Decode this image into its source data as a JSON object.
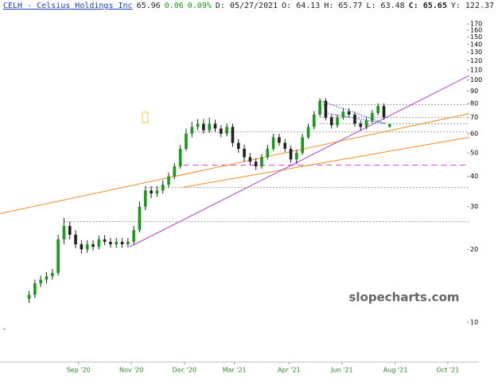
{
  "chart_data": {
    "type": "candlestick",
    "header": {
      "symbol": "CELH - Celsius Holdings Inc",
      "last": "65.96",
      "change": "0.06",
      "change_pct": "0.09%",
      "date": "D: 05/27/2021",
      "open": "O: 64.13",
      "high": "H: 65.77",
      "low": "L: 63.48",
      "close": "C: 65.65",
      "year": "Y: 122.37"
    },
    "watermark": "slopecharts.com",
    "x": [
      5,
      6,
      7,
      8,
      9,
      10,
      11,
      12,
      13,
      14,
      15,
      16,
      17,
      18,
      19,
      20,
      21,
      22,
      23,
      24,
      25,
      26,
      27,
      28,
      29,
      30,
      31,
      32,
      33,
      34,
      35,
      36,
      37,
      38,
      39,
      40,
      41,
      42,
      43,
      44,
      45,
      46,
      47,
      48,
      49,
      50,
      51,
      52,
      53,
      54,
      55,
      56,
      57,
      58,
      59,
      60,
      61,
      62,
      63,
      64,
      65,
      66,
      67
    ],
    "open": [
      12.5,
      13,
      14.5,
      15,
      15.5,
      16,
      22,
      25,
      23,
      21,
      20,
      21,
      20.5,
      22,
      21.5,
      21,
      21.5,
      21,
      21.5,
      24,
      30,
      35,
      34,
      35,
      37,
      40,
      44,
      52,
      60,
      64,
      66,
      62,
      66,
      63,
      60,
      64,
      55,
      52,
      48,
      46,
      44,
      48,
      52,
      58,
      55,
      52,
      47,
      50,
      58,
      64,
      72,
      82,
      70,
      65,
      70,
      74,
      72,
      66,
      64,
      68,
      73,
      78,
      64.13
    ],
    "high": [
      13.5,
      15,
      15.6,
      16.1,
      16.6,
      23,
      27,
      26,
      24,
      21.8,
      21.8,
      21.8,
      22.8,
      22.9,
      22.3,
      22.3,
      22.3,
      22.3,
      25,
      31.5,
      36.5,
      36.5,
      36.5,
      38.5,
      41.5,
      45.5,
      54,
      63,
      67,
      69,
      69,
      70,
      68.5,
      65,
      66,
      66,
      57,
      54,
      50,
      47.5,
      49.5,
      54,
      60,
      60,
      57,
      53.5,
      51.5,
      60,
      66,
      74.5,
      84,
      84,
      72,
      72,
      76.5,
      76.5,
      74,
      68,
      70,
      75,
      80,
      80,
      65.77
    ],
    "low": [
      12,
      12.6,
      14,
      14.5,
      15,
      15.6,
      21,
      22,
      20.2,
      19.2,
      19.4,
      19.8,
      20,
      20.8,
      20.3,
      20.3,
      20.3,
      20.4,
      21,
      23.5,
      29,
      32.5,
      33,
      34,
      36,
      39,
      43,
      51,
      58,
      62,
      60,
      60.5,
      61,
      58,
      58.5,
      53,
      50,
      46,
      44.5,
      42.5,
      43,
      47,
      51,
      53.5,
      50.5,
      45.5,
      45,
      49,
      57,
      62.5,
      70.5,
      68,
      63,
      63.5,
      68.5,
      70,
      64,
      62,
      62.5,
      66.5,
      71.5,
      68.5,
      63.48
    ],
    "close": [
      13,
      14.5,
      15,
      15.5,
      16,
      22,
      25,
      23,
      21,
      20,
      21,
      20.5,
      22,
      21.5,
      21,
      21.5,
      21,
      21.5,
      24,
      30,
      35,
      34,
      35,
      37,
      40,
      44,
      52,
      60,
      64,
      66,
      62,
      66,
      63,
      60,
      64,
      55,
      52,
      48,
      46,
      44,
      48,
      52,
      58,
      55,
      52,
      47,
      50,
      58,
      64,
      72,
      82,
      70,
      65,
      70,
      74,
      72,
      66,
      64,
      68,
      73,
      78,
      70,
      65.65
    ],
    "up_color": "#1a9a1a",
    "down_color": "#222222",
    "xlim": [
      0,
      80.7
    ],
    "xticks": [
      {
        "value": 13.5,
        "label": "Sep '20"
      },
      {
        "value": 22.6,
        "label": "Nov '20"
      },
      {
        "value": 31.7,
        "label": "Dec '20"
      },
      {
        "value": 40.3,
        "label": "Mar '21"
      },
      {
        "value": 49.7,
        "label": "Apr '21"
      },
      {
        "value": 58.8,
        "label": "Jun '21"
      },
      {
        "value": 68,
        "label": "Aug '21"
      },
      {
        "value": 77,
        "label": "Oct '21"
      }
    ],
    "ylim": [
      6.86,
      213.5
    ],
    "log_scale": true,
    "yticks": [
      10,
      20,
      30,
      40,
      50,
      60,
      70,
      80,
      90,
      100,
      110,
      120,
      130,
      140,
      150,
      160,
      170
    ],
    "trendlines": [
      {
        "color": "#f08a24",
        "x": [
          0,
          82.3
        ],
        "y": [
          28.1,
          74
        ]
      },
      {
        "color": "#f08a24",
        "x": [
          31.5,
          82.3
        ],
        "y": [
          36.1,
          58.9
        ]
      },
      {
        "color": "#b03fd6",
        "x": [
          22.3,
          82.3
        ],
        "y": [
          20.5,
          109
        ]
      },
      {
        "color": "#3b4fd8",
        "x": [
          55.1,
          66.3
        ],
        "y": [
          82,
          66
        ]
      },
      {
        "color": "#3b4fd8",
        "x": [
          56,
          66.3
        ],
        "y": [
          73,
          66
        ]
      }
    ],
    "levels": [
      {
        "value": 79,
        "from": 55,
        "color": "#999999",
        "dash": "2,2"
      },
      {
        "value": 70,
        "from": 55,
        "color": "#999999",
        "dash": "2,2"
      },
      {
        "value": 66,
        "from": 55,
        "color": "#999999",
        "dash": "2,2"
      },
      {
        "value": 61,
        "from": 33,
        "color": "#999999",
        "dash": "2,2"
      },
      {
        "value": 44.5,
        "from": 31.5,
        "color": "#e040e0",
        "dash": "7,5"
      },
      {
        "value": 36,
        "from": 25,
        "color": "#999999",
        "dash": "2,2"
      },
      {
        "value": 26,
        "from": 11,
        "color": "#999999",
        "dash": "2,2"
      }
    ]
  }
}
